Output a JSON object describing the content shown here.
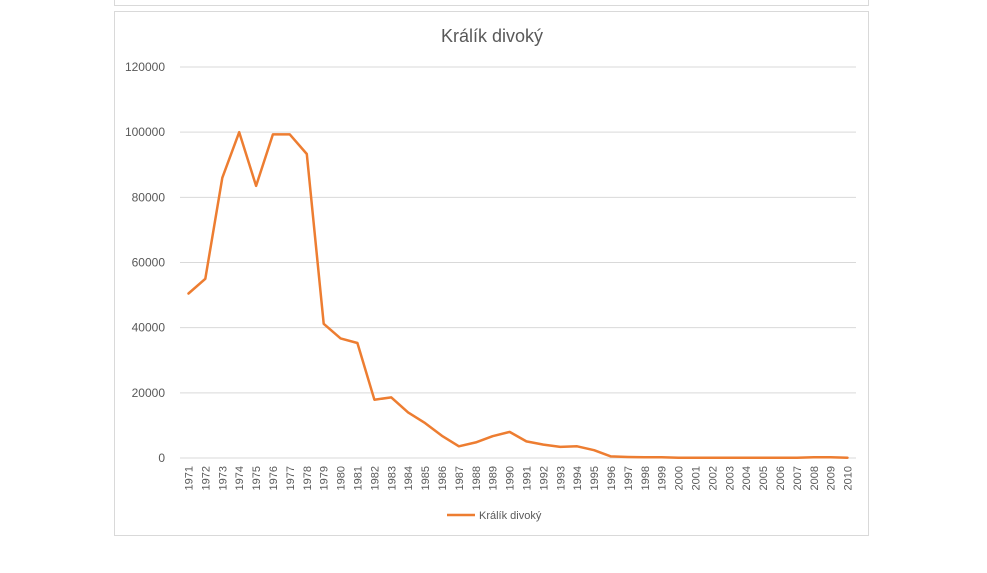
{
  "chart_data": {
    "type": "line",
    "title": "Králík divoký",
    "xlabel": "",
    "ylabel": "",
    "ylim": [
      0,
      120000
    ],
    "yticks": [
      0,
      20000,
      40000,
      60000,
      80000,
      100000,
      120000
    ],
    "grid": true,
    "legend_position": "bottom",
    "categories": [
      "1971",
      "1972",
      "1973",
      "1974",
      "1975",
      "1976",
      "1977",
      "1978",
      "1979",
      "1980",
      "1981",
      "1982",
      "1983",
      "1984",
      "1985",
      "1986",
      "1987",
      "1988",
      "1989",
      "1990",
      "1991",
      "1992",
      "1993",
      "1994",
      "1995",
      "1996",
      "1997",
      "1998",
      "1999",
      "2000",
      "2001",
      "2002",
      "2003",
      "2004",
      "2005",
      "2006",
      "2007",
      "2008",
      "2009",
      "2010"
    ],
    "series": [
      {
        "name": "Králík divoký",
        "color": "#ed7d31",
        "values": [
          50500,
          55000,
          86000,
          100000,
          83500,
          99300,
          99300,
          93300,
          41200,
          36700,
          35300,
          17900,
          18600,
          14000,
          10700,
          6800,
          3600,
          4800,
          6700,
          8000,
          5100,
          4100,
          3400,
          3600,
          2400,
          500,
          300,
          200,
          200,
          100,
          100,
          100,
          100,
          50,
          100,
          100,
          100,
          200,
          200,
          100
        ]
      }
    ]
  }
}
